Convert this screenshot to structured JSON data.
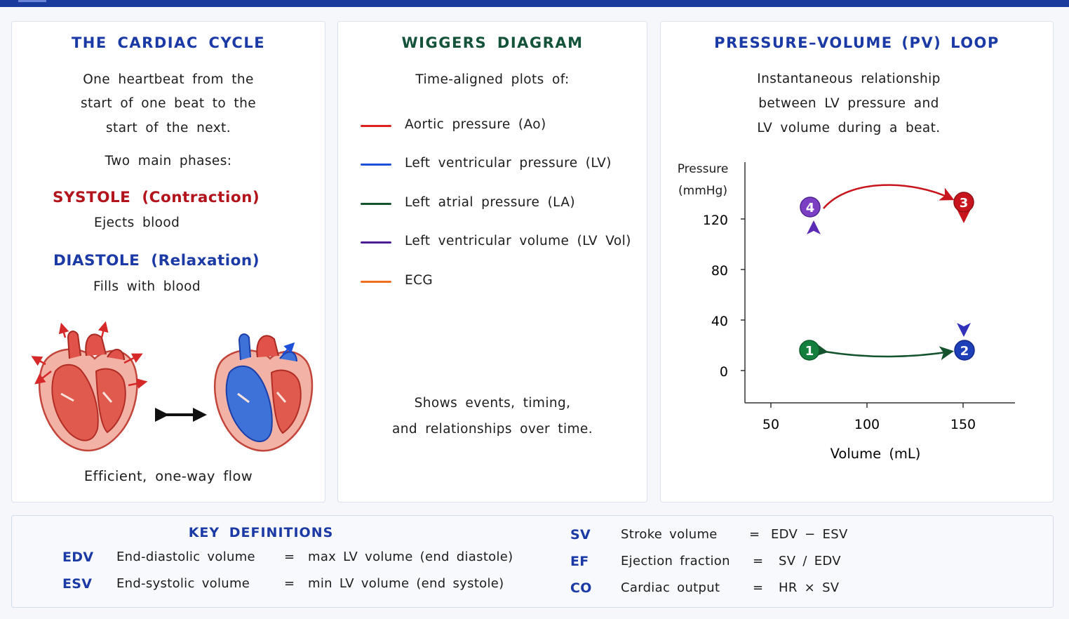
{
  "colors": {
    "navy": "#1b3aa6",
    "green_title": "#14523a",
    "systole": "#b3141c",
    "diastole": "#1b3aa6",
    "aortic": "#e02020",
    "lv": "#1d4fd8",
    "la": "#14532d",
    "lv_vol": "#4c1d95",
    "ecg": "#f07020"
  },
  "cycle": {
    "title": "THE CARDIAC CYCLE",
    "desc1": "One heartbeat from the",
    "desc2": "start of one beat to the",
    "desc3": "start of the next.",
    "phases_intro": "Two main phases:",
    "systole_label": "SYSTOLE (Contraction)",
    "systole_desc": "Ejects blood",
    "diastole_label": "DIASTOLE (Relaxation)",
    "diastole_desc": "Fills with blood",
    "flow_caption": "Efficient, one-way flow"
  },
  "wiggers": {
    "title": "WIGGERS DIAGRAM",
    "intro": "Time-aligned plots of:",
    "items": [
      {
        "label": "Aortic pressure (Ao)",
        "color": "#e02020"
      },
      {
        "label": "Left ventricular pressure (LV)",
        "color": "#1d4fd8"
      },
      {
        "label": "Left atrial pressure (LA)",
        "color": "#14532d"
      },
      {
        "label": "Left ventricular volume (LV Vol)",
        "color": "#4c1d95"
      },
      {
        "label": "ECG",
        "color": "#f07020"
      }
    ],
    "footer1": "Shows events, timing,",
    "footer2": "and relationships over time."
  },
  "pv": {
    "title": "PRESSURE–VOLUME (PV) LOOP",
    "desc1": "Instantaneous relationship",
    "desc2": "between LV pressure and",
    "desc3": "LV volume during a beat.",
    "ylabel1": "Pressure",
    "ylabel2": "(mmHg)",
    "xlabel": "Volume (mL)",
    "yticks": [
      "0",
      "40",
      "80",
      "120"
    ],
    "xticks": [
      "50",
      "100",
      "150"
    ],
    "points": [
      {
        "n": "1",
        "color": "#15803d"
      },
      {
        "n": "2",
        "color": "#1d3fb8"
      },
      {
        "n": "3",
        "color": "#c8141c"
      },
      {
        "n": "4",
        "color": "#7b3fc4"
      }
    ]
  },
  "defs": {
    "title": "KEY DEFINITIONS",
    "left": [
      {
        "abbr": "EDV",
        "name": "End-diastolic volume",
        "eq": "=",
        "value": "max LV volume (end diastole)"
      },
      {
        "abbr": "ESV",
        "name": "End-systolic volume",
        "eq": "=",
        "value": "min LV volume (end systole)"
      }
    ],
    "right": [
      {
        "abbr": "SV",
        "name": "Stroke volume",
        "eq": "=",
        "value": "EDV − ESV"
      },
      {
        "abbr": "EF",
        "name": "Ejection fraction",
        "eq": "=",
        "value": "SV / EDV"
      },
      {
        "abbr": "CO",
        "name": "Cardiac output",
        "eq": "=",
        "value": "HR × SV"
      }
    ]
  }
}
